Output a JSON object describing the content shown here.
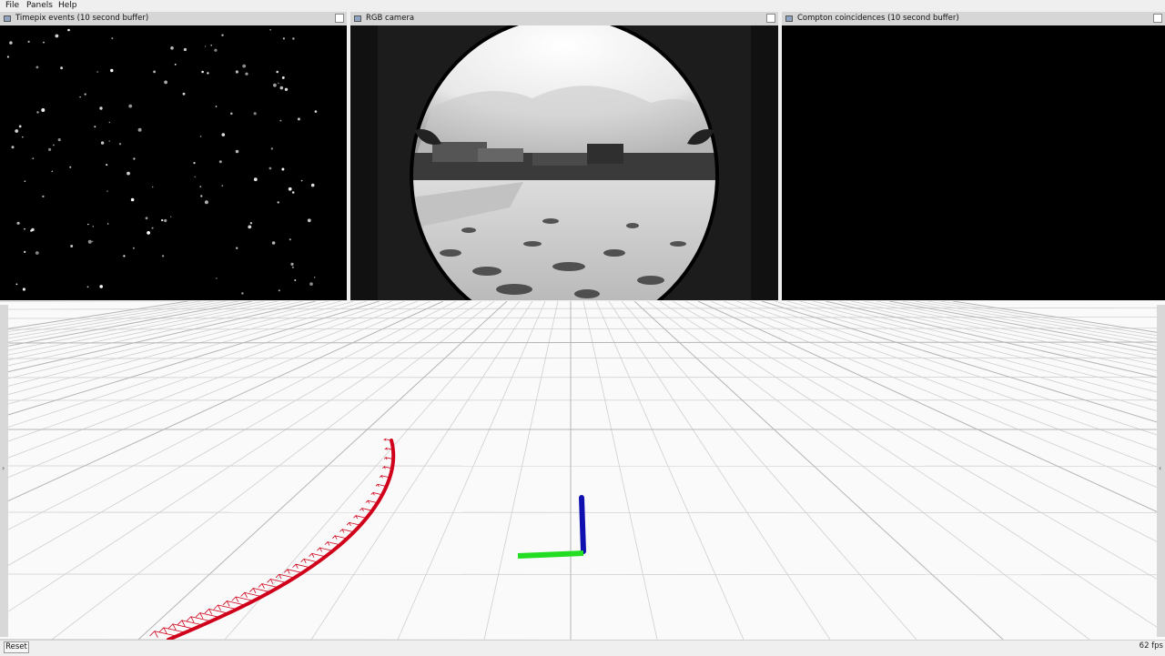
{
  "menu": {
    "file": "File",
    "panels": "Panels",
    "help": "Help"
  },
  "panels": {
    "timepix": {
      "title": "Timepix events (10 second buffer)"
    },
    "camera": {
      "title": "RGB camera"
    },
    "compton": {
      "title": "Compton coincidences (10 second buffer)"
    }
  },
  "viewport": {
    "trajectory_color": "#d0021b",
    "axis_colors": {
      "z": "#1010b0",
      "y": "#22dd22"
    }
  },
  "footer": {
    "reset_label": "Reset",
    "fps": "62 fps"
  }
}
